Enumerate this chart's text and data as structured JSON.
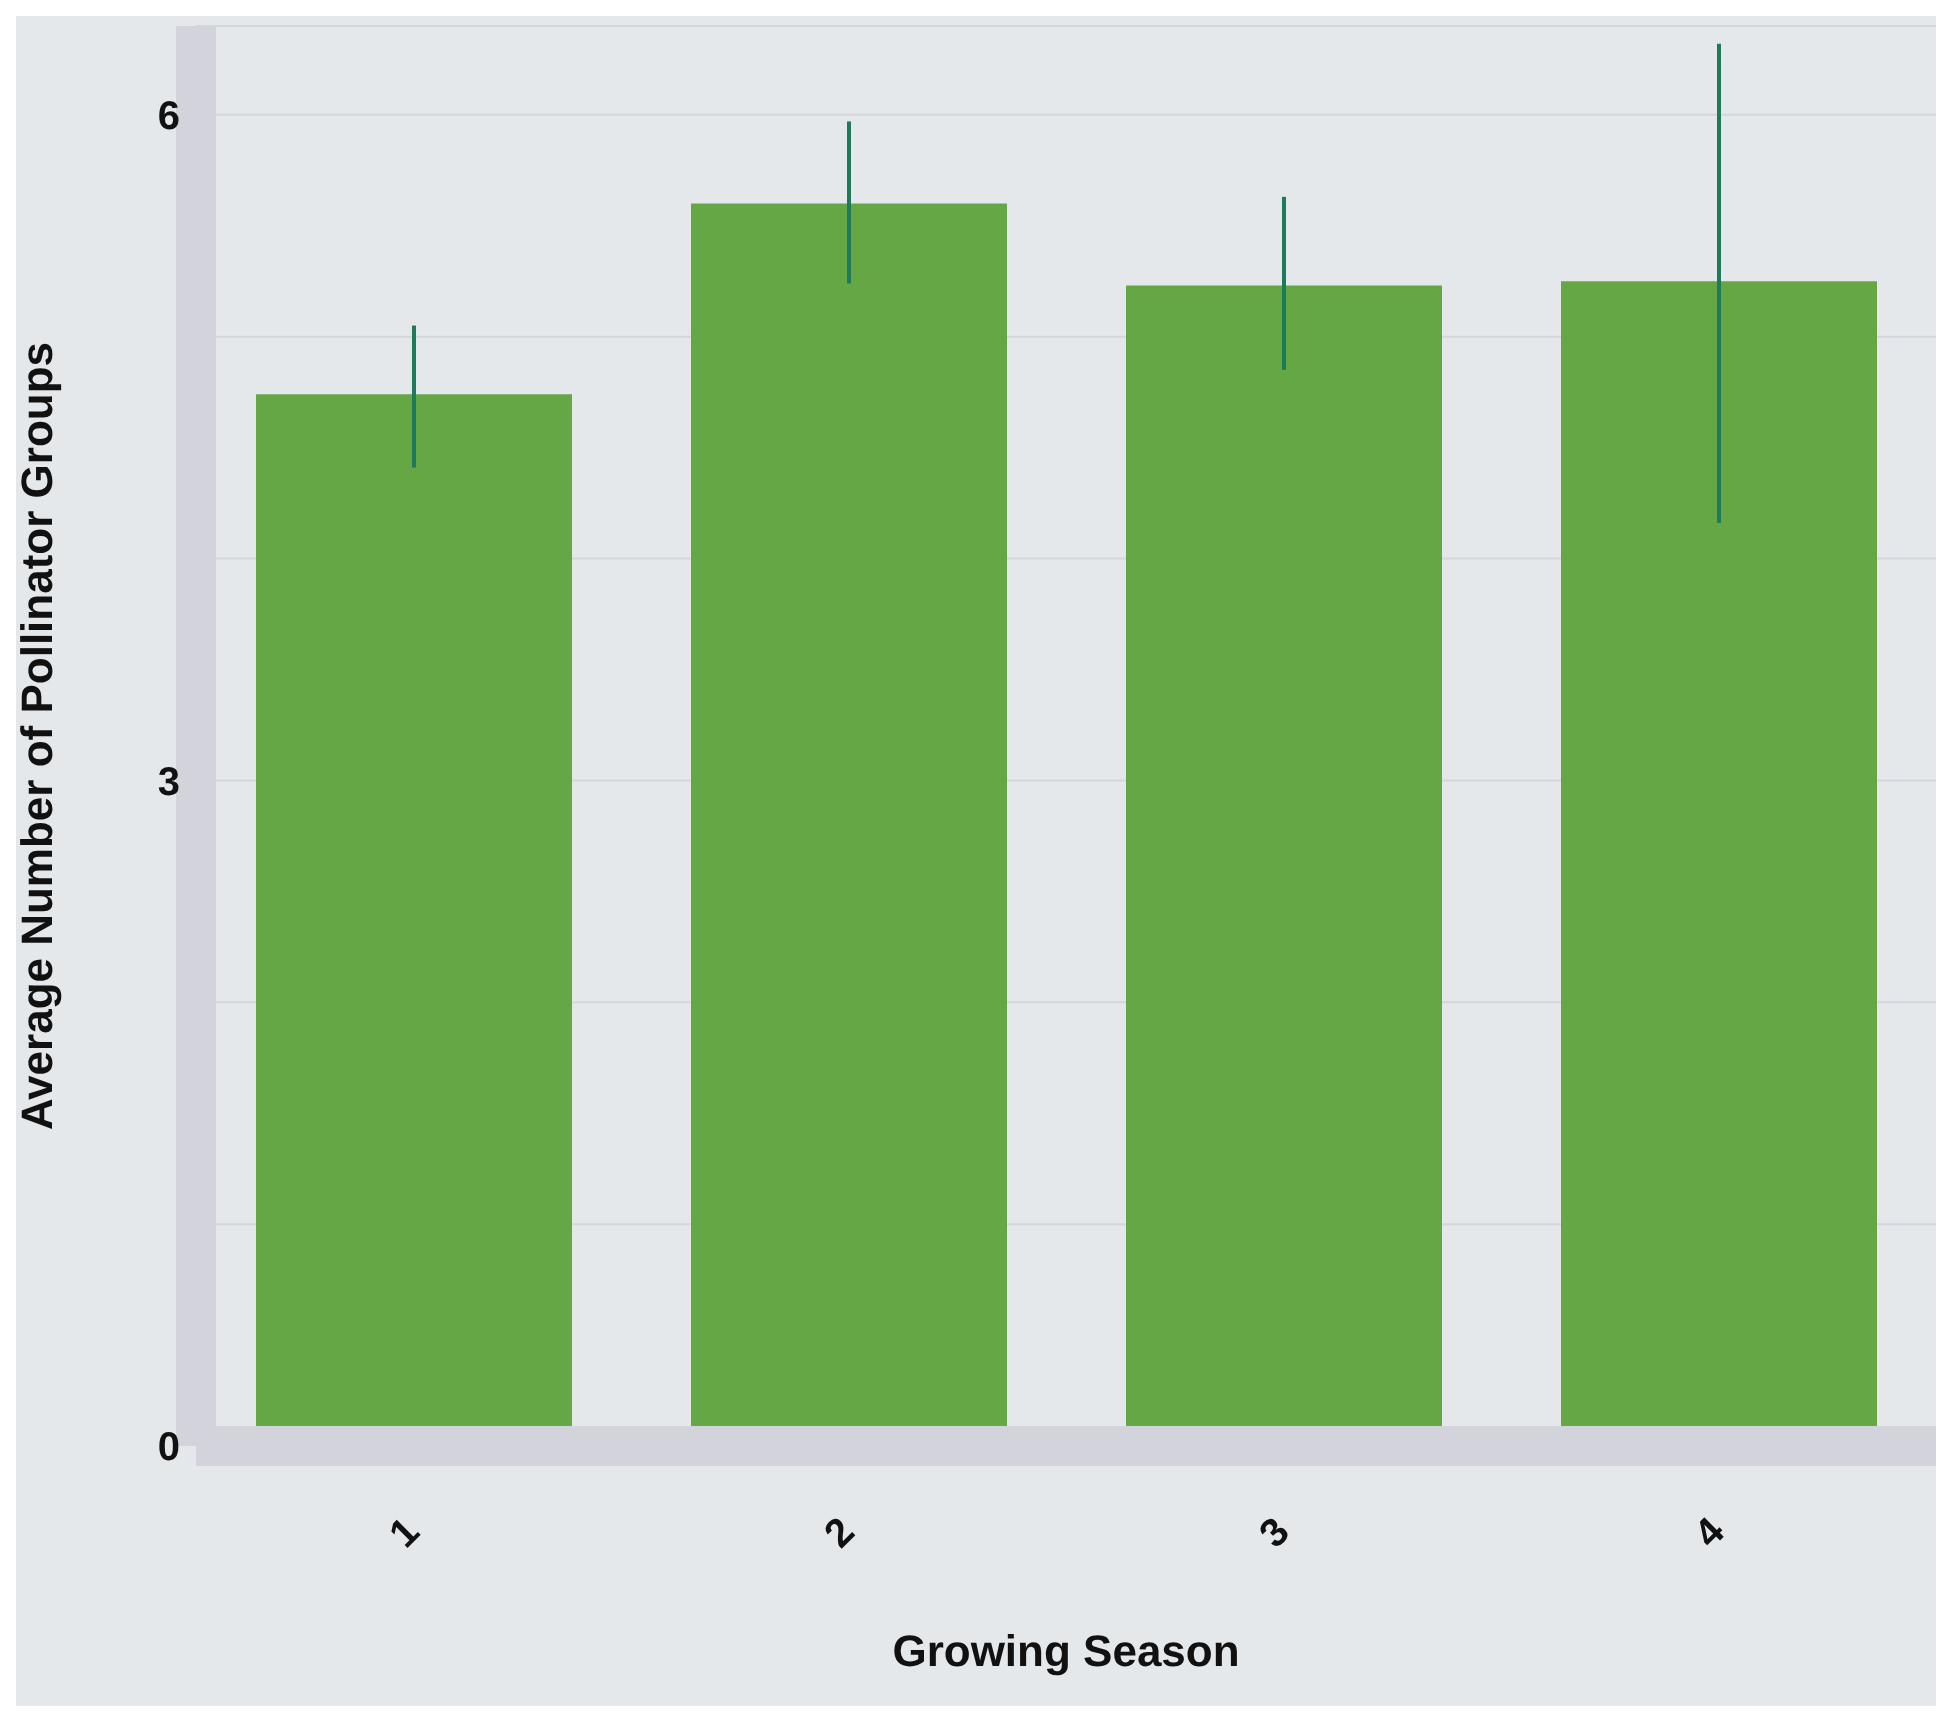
{
  "chart_data": {
    "type": "bar",
    "xlabel": "Growing Season",
    "ylabel": "Average Number of Pollinator Groups",
    "categories": [
      "1",
      "2",
      "3",
      "4"
    ],
    "values": [
      4.74,
      5.6,
      5.23,
      5.25
    ],
    "errors": [
      [
        4.41,
        5.05
      ],
      [
        5.24,
        5.97
      ],
      [
        4.85,
        5.63
      ],
      [
        4.16,
        6.32
      ]
    ],
    "color": "#64a744",
    "ylim": [
      0,
      6.4
    ],
    "yticks": [
      0,
      {
        "value": 1,
        "label": null
      },
      {
        "value": 2,
        "label": null
      },
      3,
      {
        "value": 4,
        "label": null
      },
      {
        "value": 5,
        "label": null
      },
      6
    ],
    "grid": "y"
  }
}
